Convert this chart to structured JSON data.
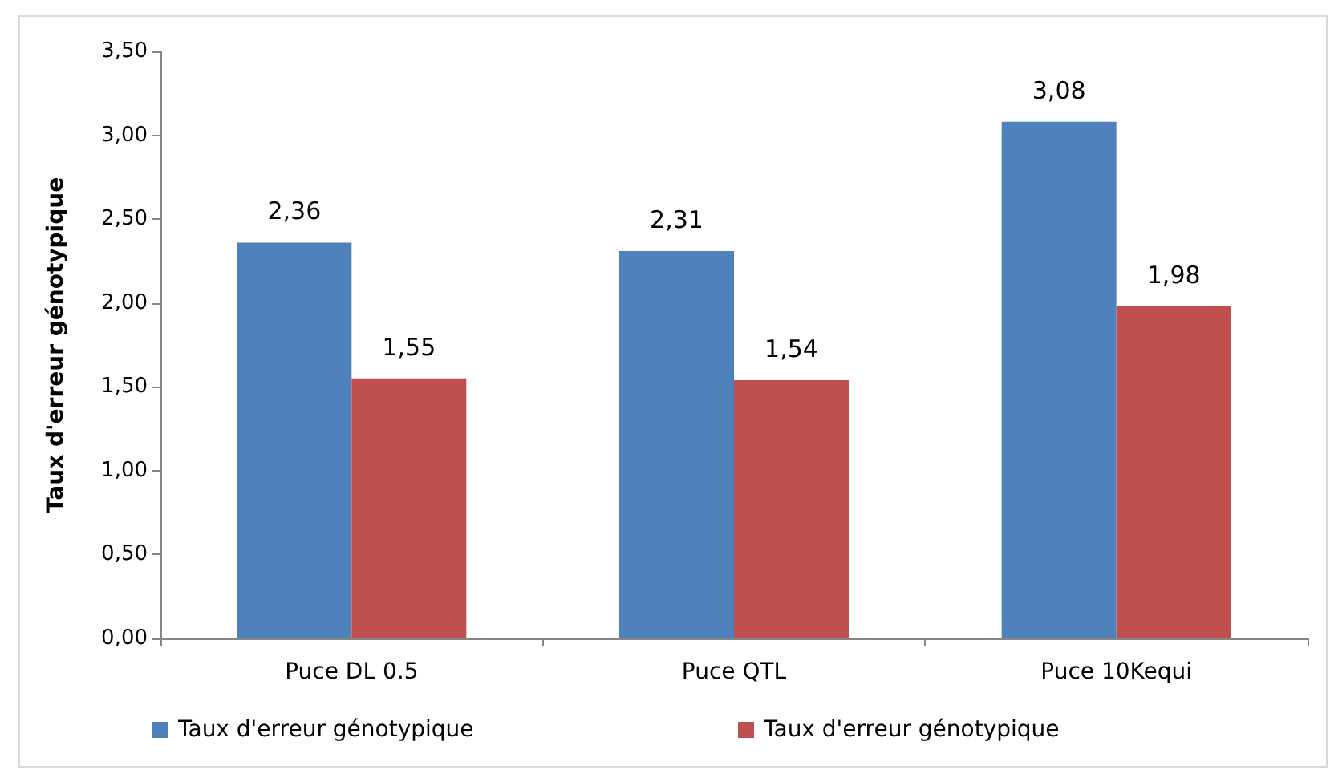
{
  "chart_data": {
    "type": "bar",
    "ylabel": "Taux d'erreur génotypique",
    "categories": [
      "Puce DL 0.5",
      "Puce QTL",
      "Puce 10Kequi"
    ],
    "series": [
      {
        "name": "Taux d'erreur génotypique",
        "color": "#4f81bd",
        "values": [
          2.36,
          2.31,
          3.08
        ],
        "value_labels": [
          "2,36",
          "2,31",
          "3,08"
        ]
      },
      {
        "name": "Taux d'erreur génotypique",
        "color": "#c0504d",
        "values": [
          1.55,
          1.54,
          1.98
        ],
        "value_labels": [
          "1,55",
          "1,54",
          "1,98"
        ]
      }
    ],
    "ylim": [
      0,
      3.5
    ],
    "yticks": [
      {
        "value": 0,
        "label": "0,00"
      },
      {
        "value": 0.5,
        "label": "0,50"
      },
      {
        "value": 1,
        "label": "1,00"
      },
      {
        "value": 1.5,
        "label": "1,50"
      },
      {
        "value": 2,
        "label": "2,00"
      },
      {
        "value": 2.5,
        "label": "2,50"
      },
      {
        "value": 3,
        "label": "3,00"
      },
      {
        "value": 3.5,
        "label": "3,50"
      }
    ],
    "grid": false,
    "legend": "bottom"
  }
}
